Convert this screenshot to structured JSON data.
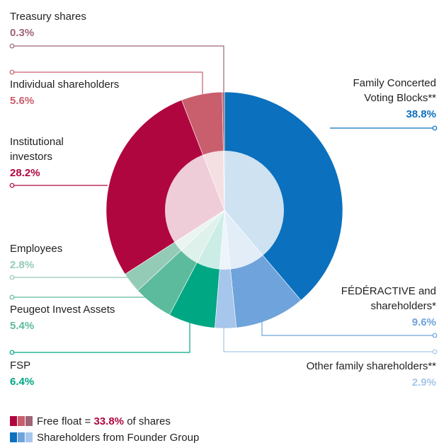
{
  "chart_data": {
    "type": "pie",
    "categories": [
      [
        "Family Concerted",
        "Voting Blocks**"
      ],
      [
        "FÉDÉRACTIVE and",
        "shareholders*"
      ],
      [
        "Other family shareholders**"
      ],
      [
        "FSP"
      ],
      [
        "Peugeot Invest Assets"
      ],
      [
        "Employees"
      ],
      [
        "Institutional",
        "investors"
      ],
      [
        "Individual shareholders"
      ],
      [
        "Treasury shares"
      ]
    ],
    "values": [
      38.8,
      9.6,
      2.9,
      6.4,
      5.4,
      2.8,
      28.2,
      5.6,
      0.3
    ],
    "value_labels": [
      "38.8%",
      "9.6%",
      "2.9%",
      "6.4%",
      "5.4%",
      "2.8%",
      "28.2%",
      "5.6%",
      "0.3%"
    ],
    "colors": [
      "#0b70bd",
      "#6fa3db",
      "#a6c6eb",
      "#00a783",
      "#5dbb9d",
      "#94cbb7",
      "#b0063f",
      "#c95e6d",
      "#9e6476"
    ],
    "legend": [
      {
        "parts": [
          "Free float =",
          "33.8%",
          "of shares"
        ]
      },
      {
        "parts": [
          "Shareholders from Founder Group"
        ]
      }
    ]
  }
}
